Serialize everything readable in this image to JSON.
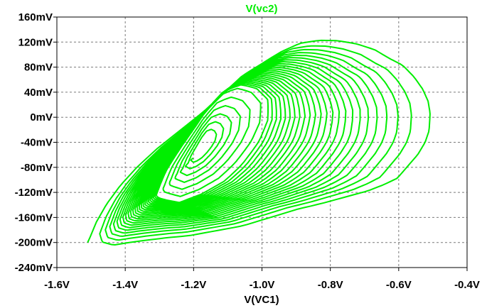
{
  "chart_data": {
    "type": "line",
    "title": "V(vc2)",
    "xlabel": "V(VC1)",
    "ylabel": "",
    "xlim": [
      -1.6,
      -0.4
    ],
    "ylim": [
      -0.24,
      0.16
    ],
    "x_ticks": [
      -1.6,
      -1.4,
      -1.2,
      -1.0,
      -0.8,
      -0.6,
      -0.4
    ],
    "x_tick_labels": [
      "-1.6V",
      "-1.4V",
      "-1.2V",
      "-1.0V",
      "-0.8V",
      "-0.6V",
      "-0.4V"
    ],
    "y_ticks": [
      0.16,
      0.12,
      0.08,
      0.04,
      0.0,
      -0.04,
      -0.08,
      -0.12,
      -0.16,
      -0.2,
      -0.24
    ],
    "y_tick_labels": [
      "160mV",
      "120mV",
      "80mV",
      "40mV",
      "0mV",
      "-40mV",
      "-80mV",
      "-120mV",
      "-160mV",
      "-200mV",
      "-240mV"
    ],
    "grid": true,
    "trace_color": "#00ee00",
    "series": [
      {
        "name": "V(vc2)",
        "description_of_shape": "decaying spiral converging toward the center",
        "center": [
          -1.175,
          -0.05
        ],
        "turns": 30,
        "outer_loop": {
          "x": [
            -1.51,
            -1.49,
            -1.46,
            -1.42,
            -1.37,
            -1.31,
            -1.24,
            -1.17,
            -1.11,
            -1.05,
            -0.99,
            -0.93,
            -0.87,
            -0.81,
            -0.75,
            -0.69,
            -0.63,
            -0.58,
            -0.54,
            -0.5,
            -0.47,
            -0.45,
            -0.44,
            -0.44,
            -0.45,
            -0.47,
            -0.5,
            -0.53,
            -0.57,
            -0.62,
            -0.69,
            -0.76,
            -0.84,
            -0.93,
            -1.02,
            -1.11,
            -1.2,
            -1.28,
            -1.35,
            -1.41,
            -1.46,
            -1.5,
            -1.51
          ],
          "y": [
            -0.2,
            -0.17,
            -0.14,
            -0.11,
            -0.08,
            -0.05,
            -0.02,
            0.01,
            0.04,
            0.07,
            0.09,
            0.11,
            0.125,
            0.13,
            0.13,
            0.125,
            0.115,
            0.1,
            0.09,
            0.07,
            0.05,
            0.03,
            0.01,
            -0.02,
            -0.04,
            -0.06,
            -0.08,
            -0.1,
            -0.11,
            -0.12,
            -0.13,
            -0.14,
            -0.15,
            -0.165,
            -0.18,
            -0.19,
            -0.2,
            -0.205,
            -0.21,
            -0.215,
            -0.22,
            -0.215,
            -0.2
          ]
        },
        "inner_loop": {
          "x": [
            -1.28,
            -1.26,
            -1.22,
            -1.18,
            -1.14,
            -1.1,
            -1.07,
            -1.05,
            -1.06,
            -1.09,
            -1.13,
            -1.18,
            -1.23,
            -1.27,
            -1.3,
            -1.29,
            -1.28
          ],
          "y": [
            -0.11,
            -0.08,
            -0.04,
            0.0,
            0.03,
            0.04,
            0.035,
            0.02,
            -0.01,
            -0.04,
            -0.07,
            -0.1,
            -0.12,
            -0.13,
            -0.12,
            -0.115,
            -0.11
          ]
        }
      }
    ]
  }
}
